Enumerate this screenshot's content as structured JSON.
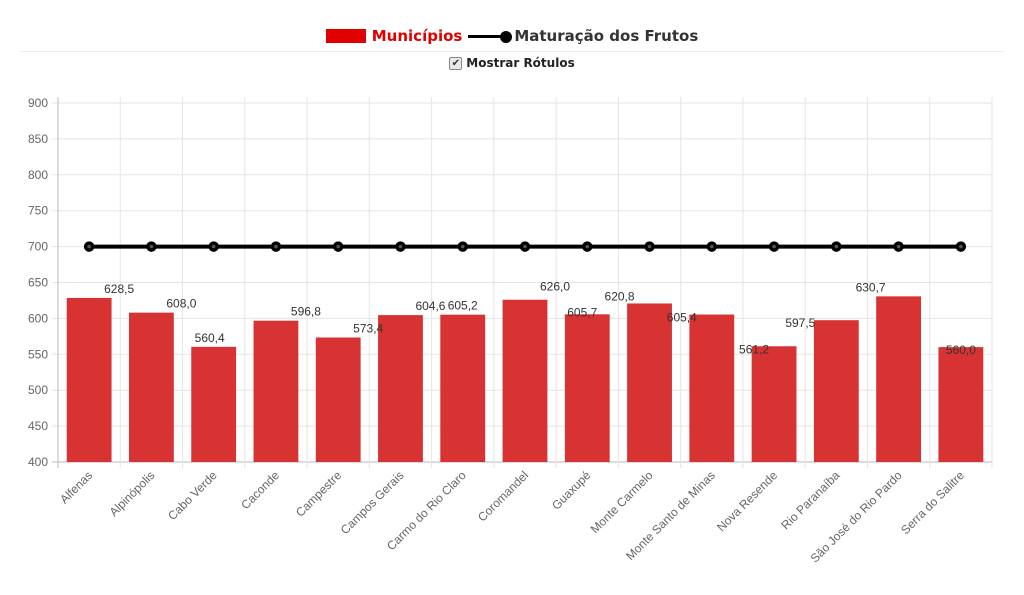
{
  "legend": {
    "series_bar_label": "Municípios",
    "series_line_label": "Maturação dos Frutos"
  },
  "toggle": {
    "label": "Mostrar Rótulos",
    "checked": true
  },
  "colors": {
    "bar": "#d62f2f",
    "legend_bar": "#e00000",
    "line": "#000000"
  },
  "chart_data": {
    "type": "bar",
    "categories": [
      "Alfenas",
      "Alpinópolis",
      "Cabo Verde",
      "Caconde",
      "Campestre",
      "Campos Gerais",
      "Carmo do Rio Claro",
      "Coromandel",
      "Guaxupé",
      "Monte Carmelo",
      "Monte Santo de Minas",
      "Nova Resende",
      "Rio Paranaíba",
      "São José do Rio Pardo",
      "Serra do Salitre"
    ],
    "series": [
      {
        "name": "Municípios",
        "type": "bar",
        "values": [
          628.5,
          608.0,
          560.4,
          596.8,
          573.4,
          604.6,
          605.2,
          626.0,
          605.7,
          620.8,
          605.4,
          561.2,
          597.5,
          630.7,
          560.0
        ],
        "labels": [
          "628,5",
          "608,0",
          "560,4",
          "596,8",
          "573,4",
          "604,6",
          "605,2",
          "626,0",
          "605,7",
          "620,8",
          "605,4",
          "561,2",
          "597,5",
          "630,7",
          "560,0"
        ]
      },
      {
        "name": "Maturação dos Frutos",
        "type": "line",
        "values": [
          700,
          700,
          700,
          700,
          700,
          700,
          700,
          700,
          700,
          700,
          700,
          700,
          700,
          700,
          700
        ]
      }
    ],
    "ylim": [
      400,
      900
    ],
    "yticks": [
      400,
      450,
      500,
      550,
      600,
      650,
      700,
      750,
      800,
      850,
      900
    ],
    "grid": true,
    "legend_position": "top-center",
    "title": "",
    "xlabel": "",
    "ylabel": ""
  }
}
